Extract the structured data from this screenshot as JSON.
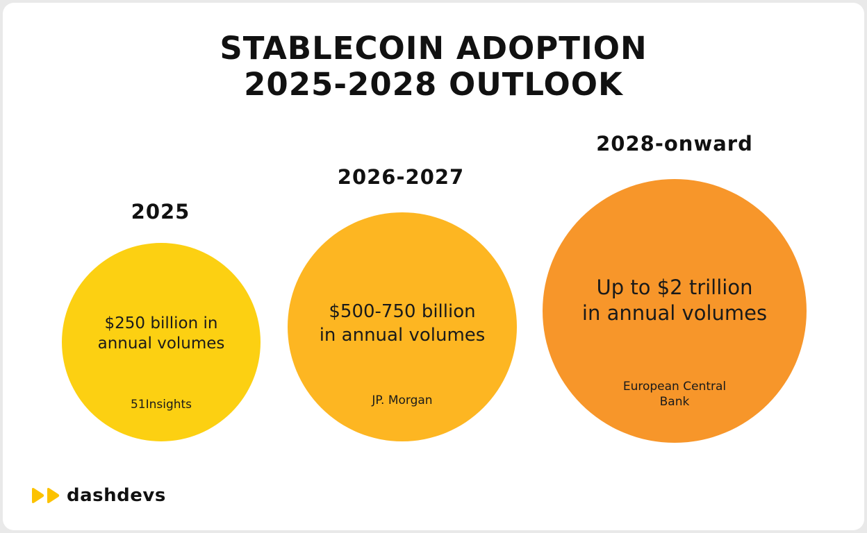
{
  "title": {
    "line1": "STABLECOIN ADOPTION",
    "line2": "2025-2028 OUTLOOK"
  },
  "periods": [
    {
      "label": "2025",
      "value": "$250 billion in\nannual volumes",
      "source": "51Insights",
      "color": "#FCD012"
    },
    {
      "label": "2026-2027",
      "value": "$500-750 billion\nin annual volumes",
      "source": "JP. Morgan",
      "color": "#FDB622"
    },
    {
      "label": "2028-onward",
      "value": "Up to $2 trillion\nin annual volumes",
      "source": "European Central\nBank",
      "color": "#F7962A"
    }
  ],
  "logo": {
    "text": "dashdevs",
    "icon": "double-play-icon",
    "color": "#FCC200"
  }
}
